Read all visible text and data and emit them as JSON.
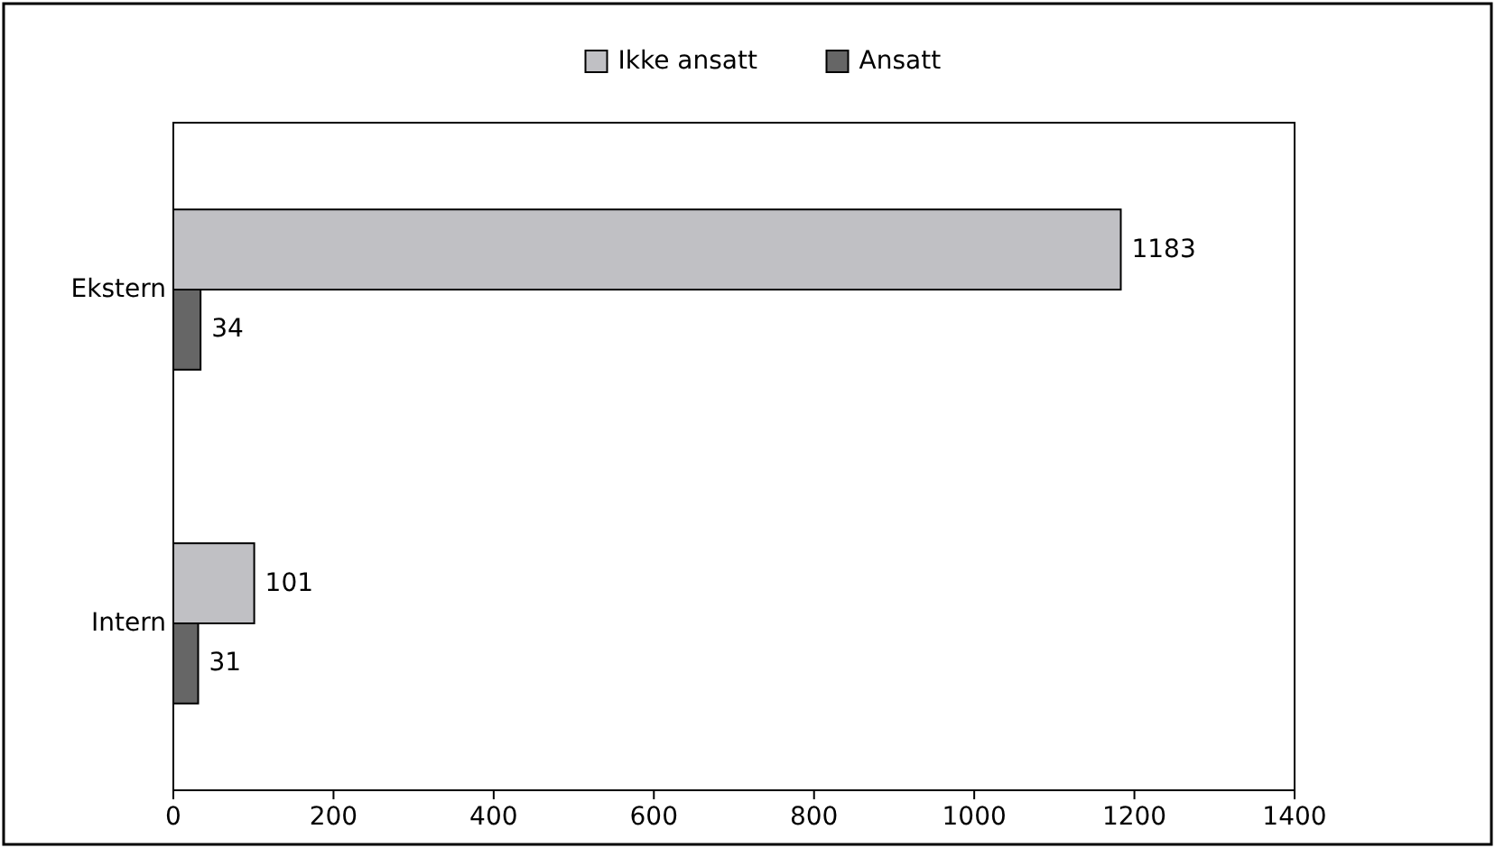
{
  "chart_data": {
    "type": "bar",
    "orientation": "horizontal",
    "categories": [
      "Ekstern",
      "Intern"
    ],
    "series": [
      {
        "name": "Ikke ansatt",
        "color": "#c0c0c4",
        "values": [
          1183,
          101
        ]
      },
      {
        "name": "Ansatt",
        "color": "#666666",
        "values": [
          34,
          31
        ]
      }
    ],
    "xlim": [
      0,
      1400
    ],
    "xticks": [
      0,
      200,
      400,
      600,
      800,
      1000,
      1200,
      1400
    ],
    "data_labels": true,
    "legend": "top",
    "grid": false
  }
}
